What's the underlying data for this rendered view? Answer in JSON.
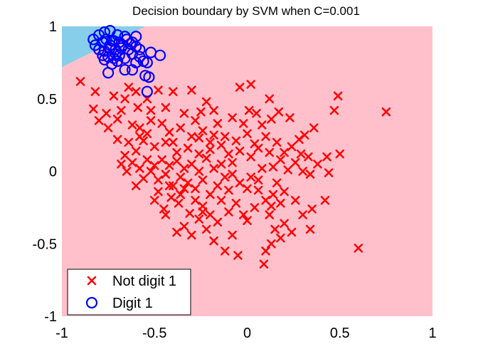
{
  "chart_data": {
    "type": "scatter",
    "title": "Decision boundary by SVM when C=0.001",
    "xlabel": "",
    "ylabel": "",
    "xlim": [
      -1,
      1
    ],
    "ylim": [
      -1,
      1
    ],
    "x_ticks": [
      "-1",
      "-0.5",
      "0",
      "0.5",
      "1"
    ],
    "y_ticks": [
      "1",
      "0.5",
      "0",
      "-0.5",
      "-1"
    ],
    "x_tick_values": [
      -1,
      -0.5,
      0,
      0.5,
      1
    ],
    "y_tick_values": [
      1,
      0.5,
      0,
      -0.5,
      -1
    ],
    "grid": false,
    "legend_position": "bottom-left",
    "regions": [
      {
        "name": "Digit 1 region",
        "color": "#87ceeb",
        "boundary": [
          [
            -1.0,
            0.72
          ],
          [
            -0.55,
            1.0
          ]
        ]
      },
      {
        "name": "Not digit 1 region",
        "color": "#ffc0cb"
      }
    ],
    "series": [
      {
        "name": "Not digit 1",
        "marker": "x",
        "color": "#ff0000",
        "points": [
          [
            -0.9,
            0.62
          ],
          [
            -0.82,
            0.55
          ],
          [
            -0.72,
            0.52
          ],
          [
            -0.66,
            0.5
          ],
          [
            -0.64,
            0.58
          ],
          [
            -0.6,
            0.55
          ],
          [
            -0.54,
            0.5
          ],
          [
            -0.48,
            0.56
          ],
          [
            -0.4,
            0.55
          ],
          [
            -0.3,
            0.56
          ],
          [
            -0.22,
            0.48
          ],
          [
            -0.04,
            0.58
          ],
          [
            0.02,
            0.6
          ],
          [
            0.12,
            0.5
          ],
          [
            0.49,
            0.52
          ],
          [
            0.75,
            0.41
          ],
          [
            0.47,
            0.42
          ],
          [
            0.36,
            0.3
          ],
          [
            0.31,
            0.25
          ],
          [
            0.23,
            0.37
          ],
          [
            0.17,
            0.41
          ],
          [
            0.05,
            0.4
          ],
          [
            0.01,
            0.42
          ],
          [
            -0.08,
            0.37
          ],
          [
            -0.18,
            0.42
          ],
          [
            -0.25,
            0.41
          ],
          [
            -0.34,
            0.4
          ],
          [
            -0.44,
            0.44
          ],
          [
            -0.52,
            0.42
          ],
          [
            -0.59,
            0.44
          ],
          [
            -0.68,
            0.42
          ],
          [
            -0.76,
            0.4
          ],
          [
            -0.83,
            0.43
          ],
          [
            -0.8,
            0.35
          ],
          [
            -0.75,
            0.3
          ],
          [
            -0.7,
            0.36
          ],
          [
            -0.62,
            0.32
          ],
          [
            -0.58,
            0.3
          ],
          [
            -0.52,
            0.35
          ],
          [
            -0.46,
            0.33
          ],
          [
            -0.42,
            0.27
          ],
          [
            -0.36,
            0.3
          ],
          [
            -0.3,
            0.24
          ],
          [
            -0.24,
            0.28
          ],
          [
            -0.18,
            0.25
          ],
          [
            -0.12,
            0.24
          ],
          [
            -0.06,
            0.21
          ],
          [
            0.0,
            0.26
          ],
          [
            0.04,
            0.19
          ],
          [
            0.1,
            0.24
          ],
          [
            0.16,
            0.2
          ],
          [
            0.2,
            0.13
          ],
          [
            0.24,
            0.17
          ],
          [
            0.29,
            0.12
          ],
          [
            0.33,
            0.1
          ],
          [
            0.43,
            0.1
          ],
          [
            0.5,
            0.12
          ],
          [
            0.44,
            -0.01
          ],
          [
            0.34,
            -0.02
          ],
          [
            0.26,
            0.06
          ],
          [
            0.18,
            0.08
          ],
          [
            0.12,
            0.13
          ],
          [
            0.06,
            0.16
          ],
          [
            0.02,
            0.1
          ],
          [
            -0.04,
            0.14
          ],
          [
            -0.1,
            0.12
          ],
          [
            -0.14,
            0.18
          ],
          [
            -0.2,
            0.15
          ],
          [
            -0.26,
            0.12
          ],
          [
            -0.32,
            0.16
          ],
          [
            -0.38,
            0.13
          ],
          [
            -0.44,
            0.2
          ],
          [
            -0.5,
            0.17
          ],
          [
            -0.56,
            0.21
          ],
          [
            -0.6,
            0.14
          ],
          [
            -0.64,
            0.2
          ],
          [
            -0.66,
            0.11
          ],
          [
            -0.62,
            0.06
          ],
          [
            -0.58,
            0.02
          ],
          [
            -0.56,
            -0.05
          ],
          [
            -0.54,
            0.08
          ],
          [
            -0.52,
            0.0
          ],
          [
            -0.5,
            0.04
          ],
          [
            -0.48,
            -0.06
          ],
          [
            -0.46,
            0.08
          ],
          [
            -0.44,
            -0.02
          ],
          [
            -0.42,
            0.04
          ],
          [
            -0.4,
            -0.1
          ],
          [
            -0.38,
            0.07
          ],
          [
            -0.36,
            -0.04
          ],
          [
            -0.34,
            0.02
          ],
          [
            -0.32,
            -0.08
          ],
          [
            -0.3,
            0.05
          ],
          [
            -0.28,
            -0.12
          ],
          [
            -0.26,
            0.0
          ],
          [
            -0.24,
            -0.06
          ],
          [
            -0.22,
            0.09
          ],
          [
            -0.2,
            -0.16
          ],
          [
            -0.18,
            0.02
          ],
          [
            -0.16,
            -0.1
          ],
          [
            -0.14,
            0.05
          ],
          [
            -0.12,
            -0.04
          ],
          [
            -0.1,
            -0.13
          ],
          [
            -0.08,
            0.06
          ],
          [
            -0.06,
            -0.22
          ],
          [
            -0.04,
            -0.08
          ],
          [
            -0.02,
            -0.3
          ],
          [
            0.0,
            -0.12
          ],
          [
            0.02,
            -0.04
          ],
          [
            0.04,
            -0.25
          ],
          [
            0.06,
            -0.13
          ],
          [
            0.08,
            0.02
          ],
          [
            0.1,
            -0.2
          ],
          [
            0.12,
            -0.3
          ],
          [
            0.14,
            -0.16
          ],
          [
            0.16,
            -0.08
          ],
          [
            0.18,
            -0.22
          ],
          [
            0.2,
            -0.14
          ],
          [
            0.22,
            0.01
          ],
          [
            0.26,
            -0.2
          ],
          [
            0.24,
            -0.42
          ],
          [
            0.18,
            -0.46
          ],
          [
            0.13,
            -0.5
          ],
          [
            0.1,
            -0.55
          ],
          [
            0.09,
            -0.64
          ],
          [
            -0.05,
            -0.58
          ],
          [
            -0.12,
            -0.55
          ],
          [
            -0.18,
            -0.48
          ],
          [
            -0.22,
            -0.4
          ],
          [
            -0.26,
            -0.33
          ],
          [
            -0.31,
            -0.29
          ],
          [
            -0.34,
            -0.38
          ],
          [
            -0.37,
            -0.22
          ],
          [
            -0.41,
            -0.18
          ],
          [
            -0.45,
            -0.26
          ],
          [
            -0.48,
            -0.14
          ],
          [
            -0.5,
            -0.2
          ],
          [
            -0.44,
            -0.3
          ],
          [
            -0.38,
            -0.42
          ],
          [
            -0.3,
            -0.44
          ],
          [
            -0.2,
            -0.3
          ],
          [
            -0.16,
            -0.35
          ],
          [
            -0.1,
            -0.28
          ],
          [
            0.0,
            -0.34
          ],
          [
            0.13,
            -0.24
          ],
          [
            0.2,
            -0.36
          ],
          [
            0.35,
            -0.26
          ],
          [
            0.42,
            -0.2
          ],
          [
            0.6,
            -0.53
          ],
          [
            0.34,
            -0.4
          ],
          [
            0.3,
            -0.3
          ],
          [
            0.15,
            -0.4
          ],
          [
            -0.08,
            -0.44
          ],
          [
            -0.24,
            -0.28
          ],
          [
            -0.28,
            -0.2
          ],
          [
            -0.34,
            -0.12
          ],
          [
            -0.6,
            -0.1
          ],
          [
            -0.65,
            0.0
          ],
          [
            -0.68,
            0.05
          ],
          [
            -0.58,
            0.24
          ],
          [
            -0.7,
            0.22
          ],
          [
            -0.54,
            0.26
          ],
          [
            -0.4,
            0.2
          ],
          [
            -0.28,
            0.35
          ],
          [
            -0.16,
            0.33
          ],
          [
            -0.02,
            0.33
          ],
          [
            0.08,
            0.32
          ],
          [
            0.13,
            0.36
          ],
          [
            0.28,
            0.22
          ],
          [
            0.38,
            0.05
          ],
          [
            0.3,
            0.0
          ],
          [
            0.14,
            0.03
          ],
          [
            -0.08,
            -0.02
          ],
          [
            -0.14,
            -0.2
          ],
          [
            -0.24,
            -0.24
          ],
          [
            -0.36,
            -0.16
          ],
          [
            -0.42,
            -0.1
          ],
          [
            -0.2,
            0.2
          ],
          [
            -0.26,
            0.23
          ],
          [
            0.06,
            -0.06
          ]
        ]
      },
      {
        "name": "Digit 1",
        "marker": "o",
        "color": "#0000ff",
        "points": [
          [
            -0.83,
            0.91
          ],
          [
            -0.8,
            0.94
          ],
          [
            -0.77,
            0.96
          ],
          [
            -0.74,
            0.97
          ],
          [
            -0.7,
            0.94
          ],
          [
            -0.66,
            0.93
          ],
          [
            -0.6,
            0.93
          ],
          [
            -0.82,
            0.87
          ],
          [
            -0.78,
            0.89
          ],
          [
            -0.76,
            0.91
          ],
          [
            -0.73,
            0.9
          ],
          [
            -0.69,
            0.89
          ],
          [
            -0.65,
            0.91
          ],
          [
            -0.63,
            0.88
          ],
          [
            -0.8,
            0.84
          ],
          [
            -0.77,
            0.83
          ],
          [
            -0.74,
            0.85
          ],
          [
            -0.71,
            0.84
          ],
          [
            -0.68,
            0.85
          ],
          [
            -0.64,
            0.84
          ],
          [
            -0.6,
            0.86
          ],
          [
            -0.78,
            0.8
          ],
          [
            -0.75,
            0.79
          ],
          [
            -0.72,
            0.78
          ],
          [
            -0.69,
            0.8
          ],
          [
            -0.66,
            0.78
          ],
          [
            -0.62,
            0.81
          ],
          [
            -0.58,
            0.79
          ],
          [
            -0.77,
            0.77
          ],
          [
            -0.73,
            0.74
          ],
          [
            -0.7,
            0.76
          ],
          [
            -0.6,
            0.75
          ],
          [
            -0.56,
            0.76
          ],
          [
            -0.54,
            0.75
          ],
          [
            -0.52,
            0.82
          ],
          [
            -0.47,
            0.8
          ],
          [
            -0.75,
            0.68
          ],
          [
            -0.66,
            0.7
          ],
          [
            -0.62,
            0.7
          ],
          [
            -0.53,
            0.65
          ],
          [
            -0.54,
            0.55
          ],
          [
            -0.55,
            0.66
          ],
          [
            -0.72,
            0.9
          ],
          [
            -0.74,
            0.87
          ],
          [
            -0.67,
            0.87
          ],
          [
            -0.62,
            0.89
          ],
          [
            -0.58,
            0.84
          ],
          [
            -0.71,
            0.81
          ]
        ]
      }
    ]
  }
}
